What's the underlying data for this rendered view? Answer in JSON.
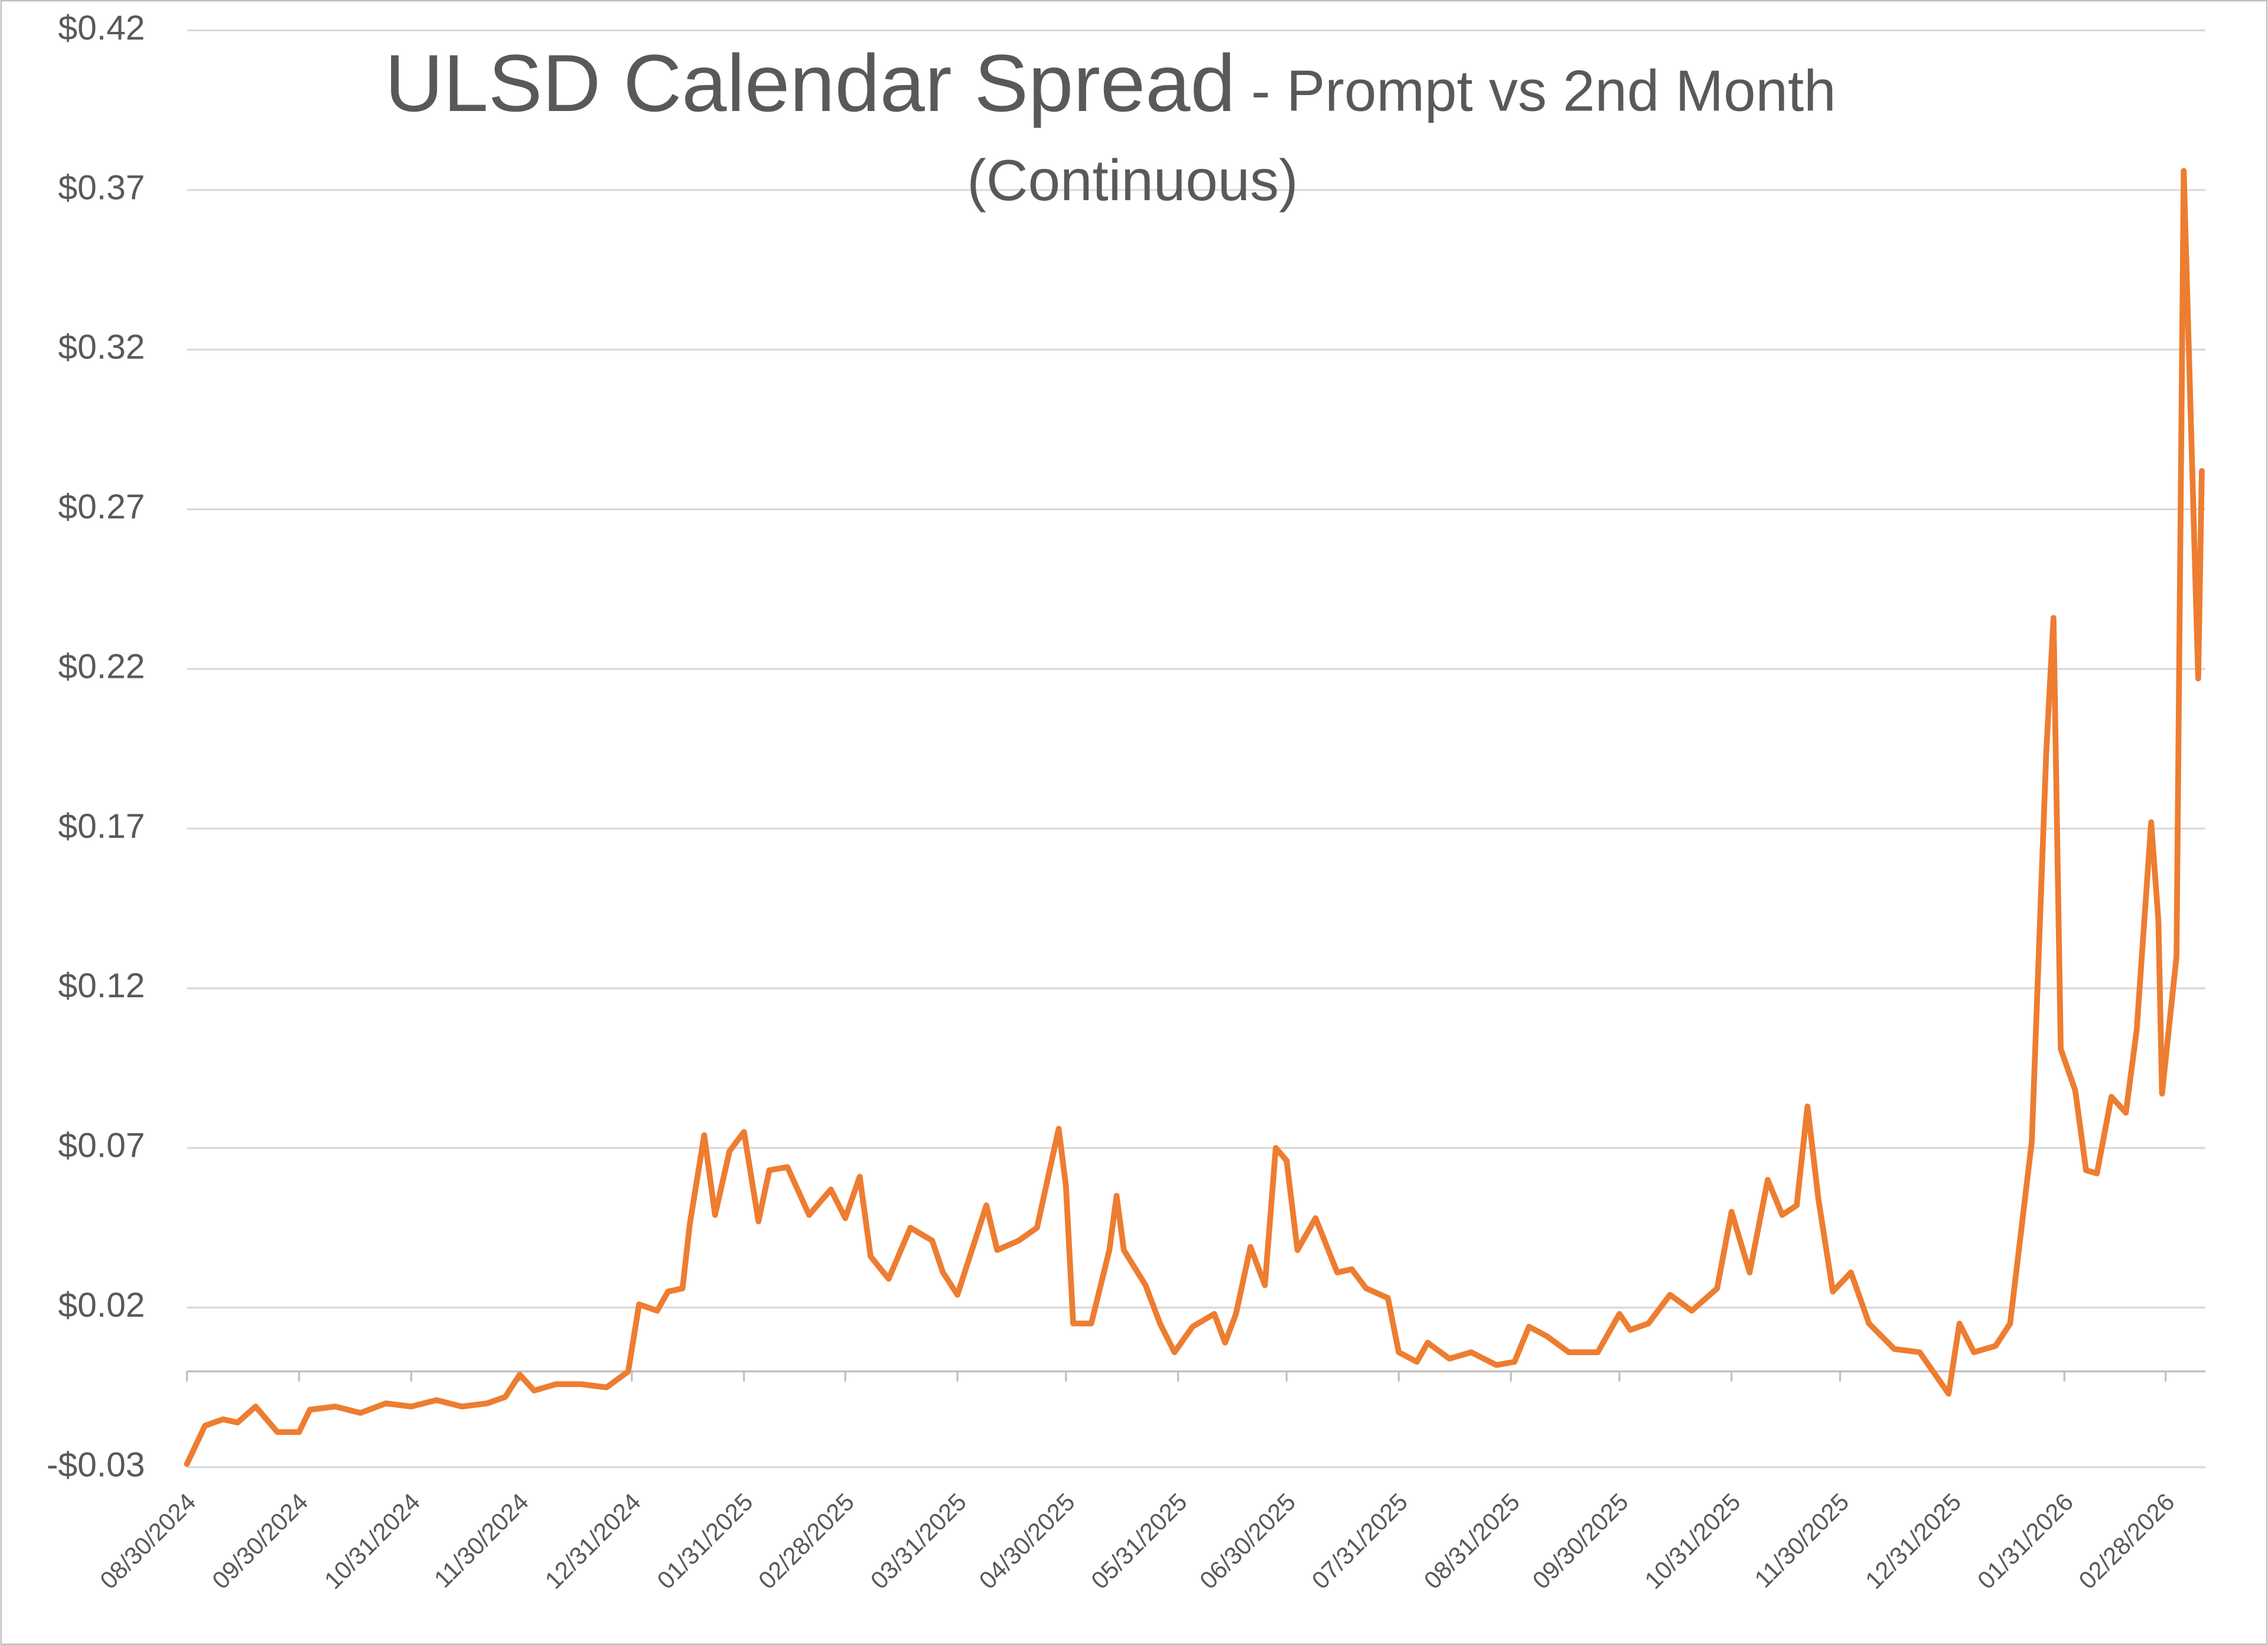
{
  "chart_data": {
    "type": "line",
    "title": "ULSD Calendar Spread",
    "subtitle": [
      "- Prompt vs 2nd Month",
      "(Continuous)"
    ],
    "color": "#ed7d31",
    "grid": true,
    "ylim": [
      -0.03,
      0.42
    ],
    "yticks": [
      {
        "value": -0.03,
        "label": "-$0.03"
      },
      {
        "value": 0.02,
        "label": "$0.02"
      },
      {
        "value": 0.07,
        "label": "$0.07"
      },
      {
        "value": 0.12,
        "label": "$0.12"
      },
      {
        "value": 0.17,
        "label": "$0.17"
      },
      {
        "value": 0.22,
        "label": "$0.22"
      },
      {
        "value": 0.27,
        "label": "$0.27"
      },
      {
        "value": 0.32,
        "label": "$0.32"
      },
      {
        "value": 0.37,
        "label": "$0.37"
      },
      {
        "value": 0.42,
        "label": "$0.42"
      }
    ],
    "xlim": [
      "08/30/2024",
      "03/11/2026"
    ],
    "xticks": [
      "08/30/2024",
      "09/30/2024",
      "10/31/2024",
      "11/30/2024",
      "12/31/2024",
      "01/31/2025",
      "02/28/2025",
      "03/31/2025",
      "04/30/2025",
      "05/31/2025",
      "06/30/2025",
      "07/31/2025",
      "08/31/2025",
      "09/30/2025",
      "10/31/2025",
      "11/30/2025",
      "12/31/2025",
      "01/31/2026",
      "02/28/2026"
    ],
    "x": [
      "08/30/2024",
      "09/04/2024",
      "09/09/2024",
      "09/13/2024",
      "09/18/2024",
      "09/24/2024",
      "09/30/2024",
      "10/03/2024",
      "10/10/2024",
      "10/17/2024",
      "10/24/2024",
      "10/31/2024",
      "11/07/2024",
      "11/14/2024",
      "11/21/2024",
      "11/26/2024",
      "11/30/2024",
      "12/04/2024",
      "12/10/2024",
      "12/17/2024",
      "12/24/2024",
      "12/30/2024",
      "01/02/2025",
      "01/07/2025",
      "01/10/2025",
      "01/14/2025",
      "01/16/2025",
      "01/20/2025",
      "01/23/2025",
      "01/27/2025",
      "01/31/2025",
      "02/04/2025",
      "02/07/2025",
      "02/12/2025",
      "02/18/2025",
      "02/24/2025",
      "02/28/2025",
      "03/04/2025",
      "03/07/2025",
      "03/12/2025",
      "03/18/2025",
      "03/24/2025",
      "03/27/2025",
      "03/31/2025",
      "04/04/2025",
      "04/08/2025",
      "04/11/2025",
      "04/17/2025",
      "04/22/2025",
      "04/28/2025",
      "04/30/2025",
      "05/02/2025",
      "05/07/2025",
      "05/12/2025",
      "05/14/2025",
      "05/16/2025",
      "05/22/2025",
      "05/26/2025",
      "05/30/2025",
      "06/04/2025",
      "06/10/2025",
      "06/13/2025",
      "06/16/2025",
      "06/20/2025",
      "06/24/2025",
      "06/27/2025",
      "06/30/2025",
      "07/03/2025",
      "07/08/2025",
      "07/14/2025",
      "07/18/2025",
      "07/22/2025",
      "07/28/2025",
      "07/31/2025",
      "08/05/2025",
      "08/08/2025",
      "08/14/2025",
      "08/20/2025",
      "08/27/2025",
      "09/01/2025",
      "09/05/2025",
      "09/10/2025",
      "09/16/2025",
      "09/24/2025",
      "09/30/2025",
      "10/03/2025",
      "10/08/2025",
      "10/14/2025",
      "10/20/2025",
      "10/27/2025",
      "10/31/2025",
      "11/05/2025",
      "11/10/2025",
      "11/14/2025",
      "11/18/2025",
      "11/21/2025",
      "11/24/2025",
      "11/28/2025",
      "12/03/2025",
      "12/08/2025",
      "12/15/2025",
      "12/22/2025",
      "12/30/2025",
      "01/02/2026",
      "01/06/2026",
      "01/12/2026",
      "01/16/2026",
      "01/22/2026",
      "01/26/2026",
      "01/28/2026",
      "01/30/2026",
      "02/03/2026",
      "02/06/2026",
      "02/09/2026",
      "02/13/2026",
      "02/17/2026",
      "02/20/2026",
      "02/24/2026",
      "02/26/2026",
      "02/27/2026",
      "03/03/2026",
      "03/05/2026",
      "03/09/2026",
      "03/10/2026"
    ],
    "values": [
      -0.029,
      -0.017,
      -0.015,
      -0.016,
      -0.011,
      -0.019,
      -0.019,
      -0.012,
      -0.011,
      -0.013,
      -0.01,
      -0.011,
      -0.009,
      -0.011,
      -0.01,
      -0.008,
      -0.001,
      -0.006,
      -0.004,
      -0.004,
      -0.005,
      0.0,
      0.021,
      0.019,
      0.025,
      0.026,
      0.046,
      0.074,
      0.049,
      0.069,
      0.075,
      0.047,
      0.063,
      0.064,
      0.049,
      0.057,
      0.048,
      0.061,
      0.036,
      0.029,
      0.045,
      0.041,
      0.031,
      0.024,
      0.038,
      0.052,
      0.038,
      0.041,
      0.045,
      0.076,
      0.058,
      0.015,
      0.015,
      0.038,
      0.055,
      0.038,
      0.027,
      0.015,
      0.006,
      0.014,
      0.018,
      0.009,
      0.018,
      0.039,
      0.027,
      0.07,
      0.066,
      0.038,
      0.048,
      0.031,
      0.032,
      0.026,
      0.023,
      0.006,
      0.003,
      0.009,
      0.004,
      0.006,
      0.002,
      0.003,
      0.014,
      0.011,
      0.006,
      0.006,
      0.018,
      0.013,
      0.015,
      0.024,
      0.019,
      0.026,
      0.05,
      0.031,
      0.06,
      0.049,
      0.052,
      0.083,
      0.054,
      0.025,
      0.031,
      0.015,
      0.007,
      0.006,
      -0.007,
      0.015,
      0.006,
      0.008,
      0.015,
      0.072,
      0.194,
      0.236,
      0.101,
      0.088,
      0.063,
      0.062,
      0.086,
      0.081,
      0.107,
      0.172,
      0.141,
      0.087,
      0.13,
      0.376,
      0.217,
      0.282
    ]
  }
}
